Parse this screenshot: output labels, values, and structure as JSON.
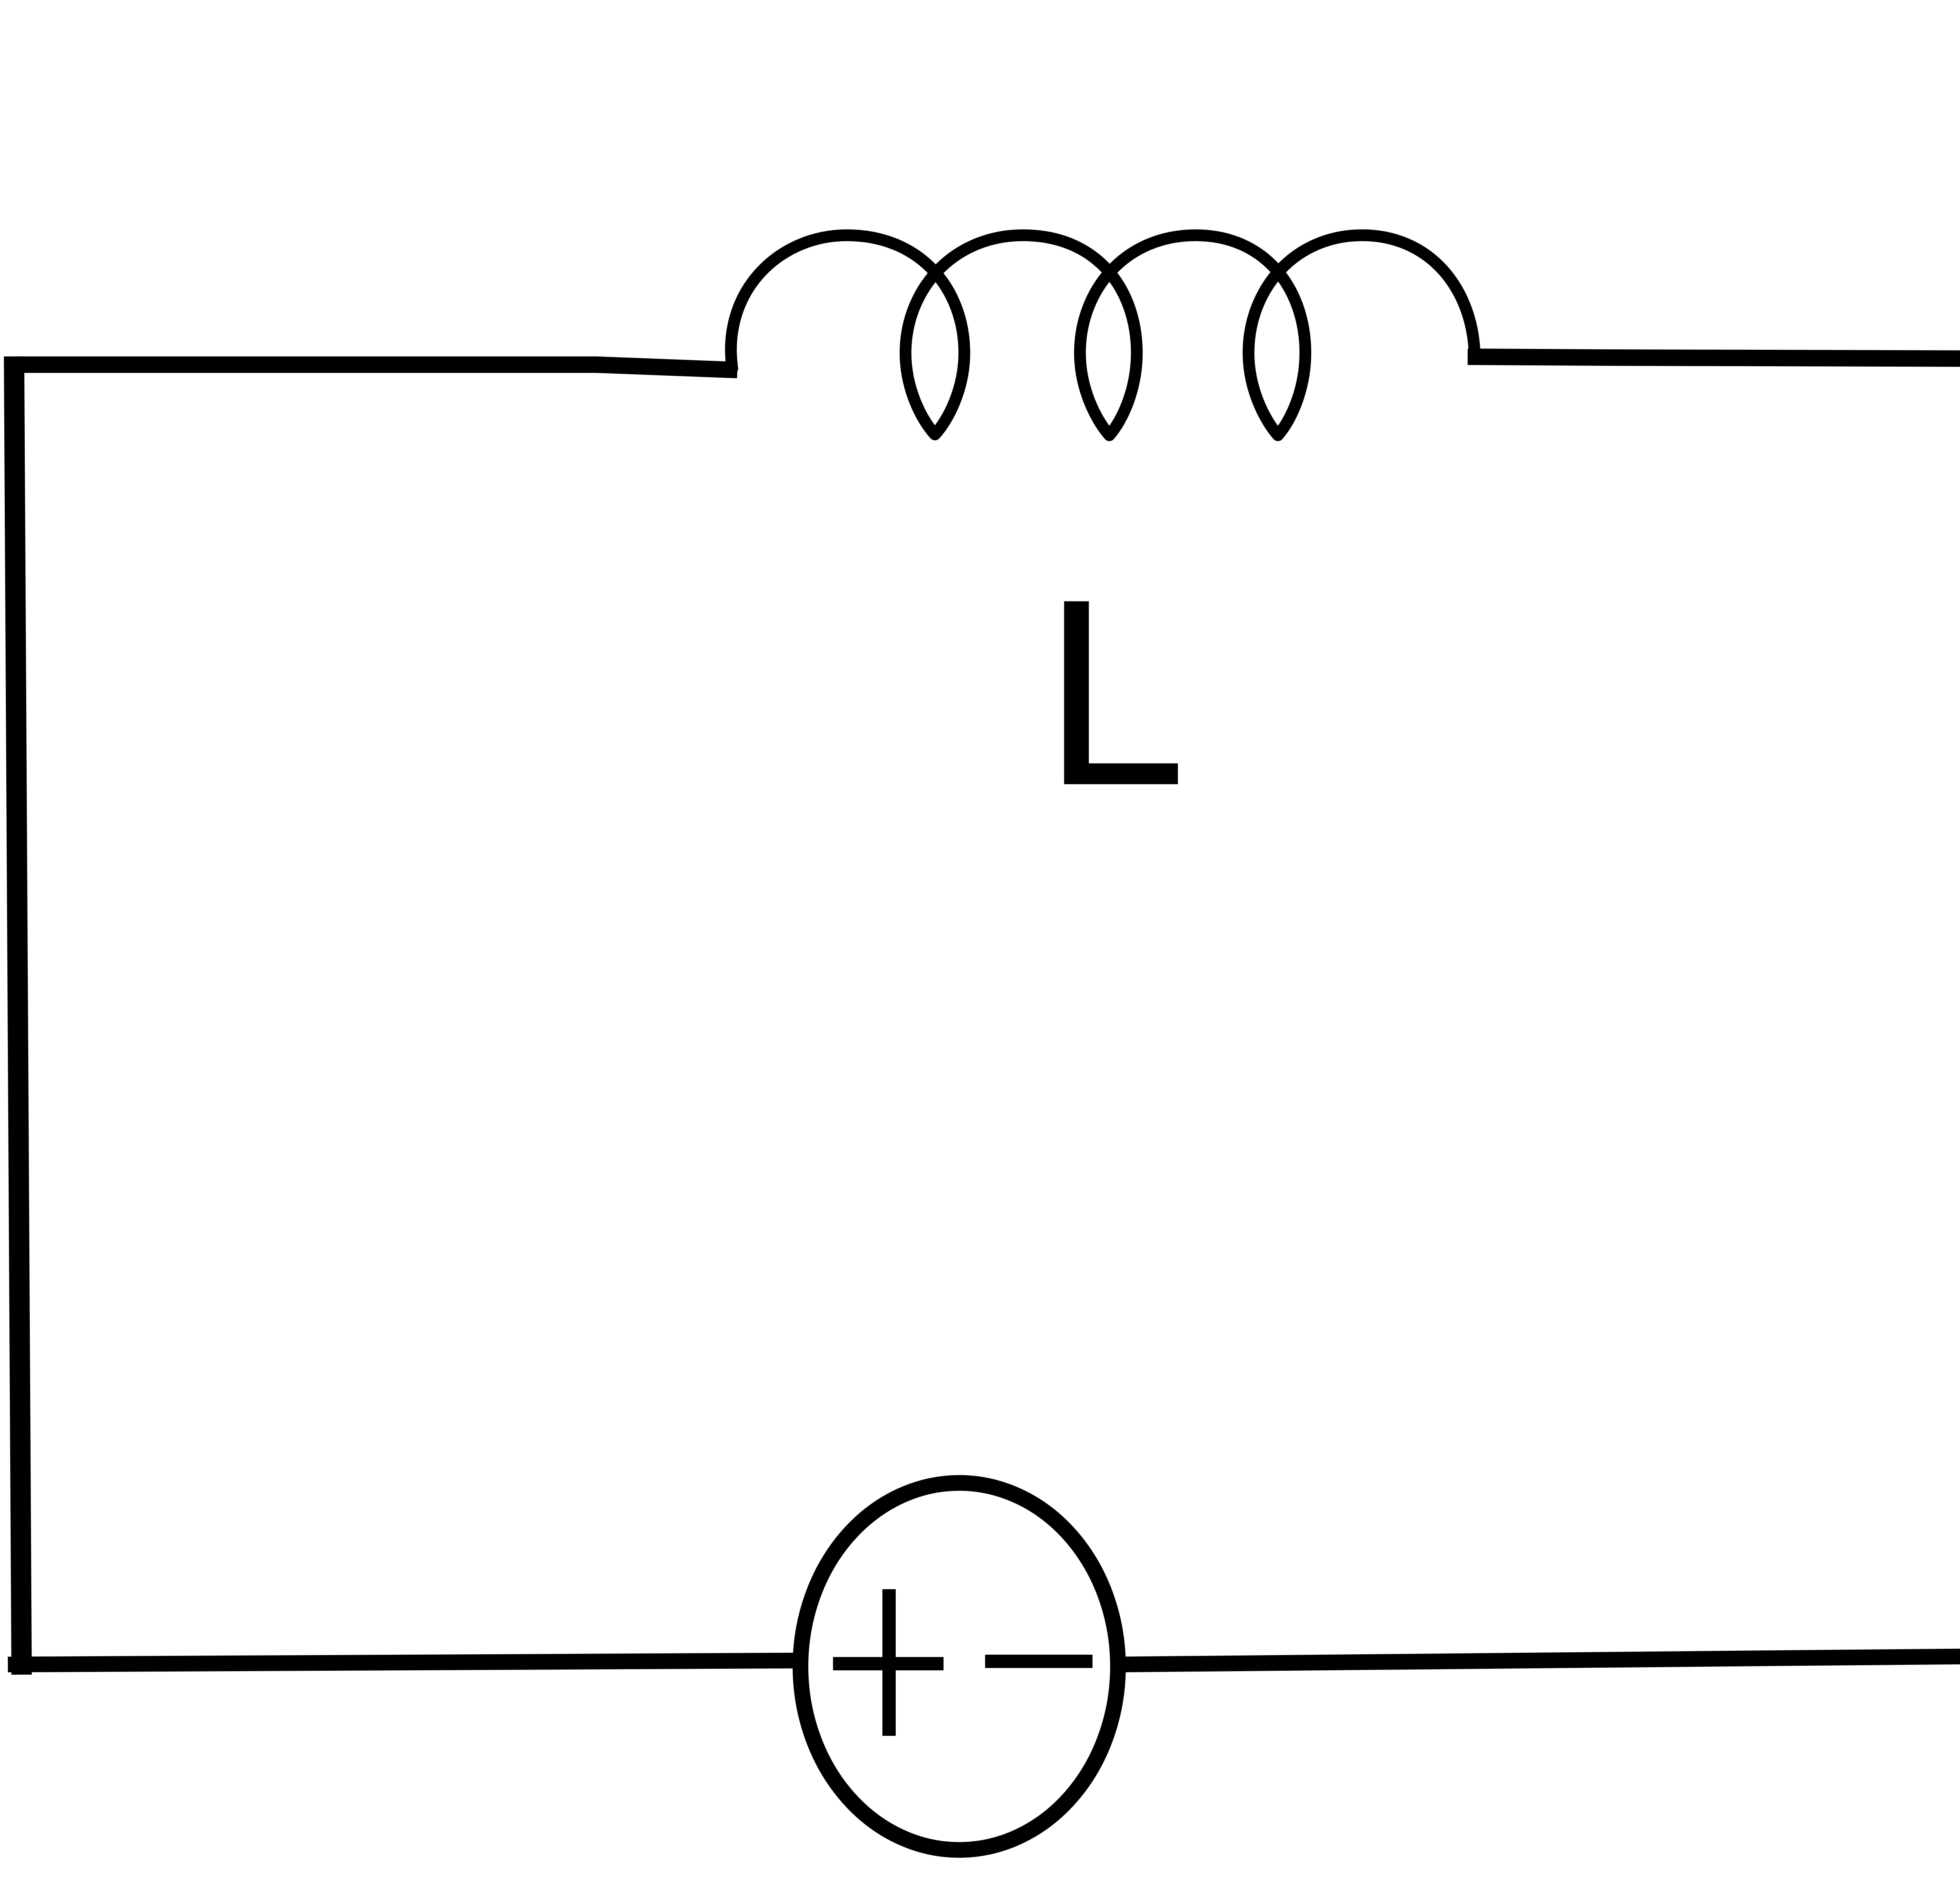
{
  "inductor": {
    "label": "L",
    "icon": "inductor-coil-icon",
    "turns": 4
  },
  "source": {
    "icon": "dc-voltage-source-icon",
    "plus_symbol": "+",
    "minus_symbol": "−"
  },
  "colors": {
    "line": "#000000",
    "background": "#ffffff"
  }
}
